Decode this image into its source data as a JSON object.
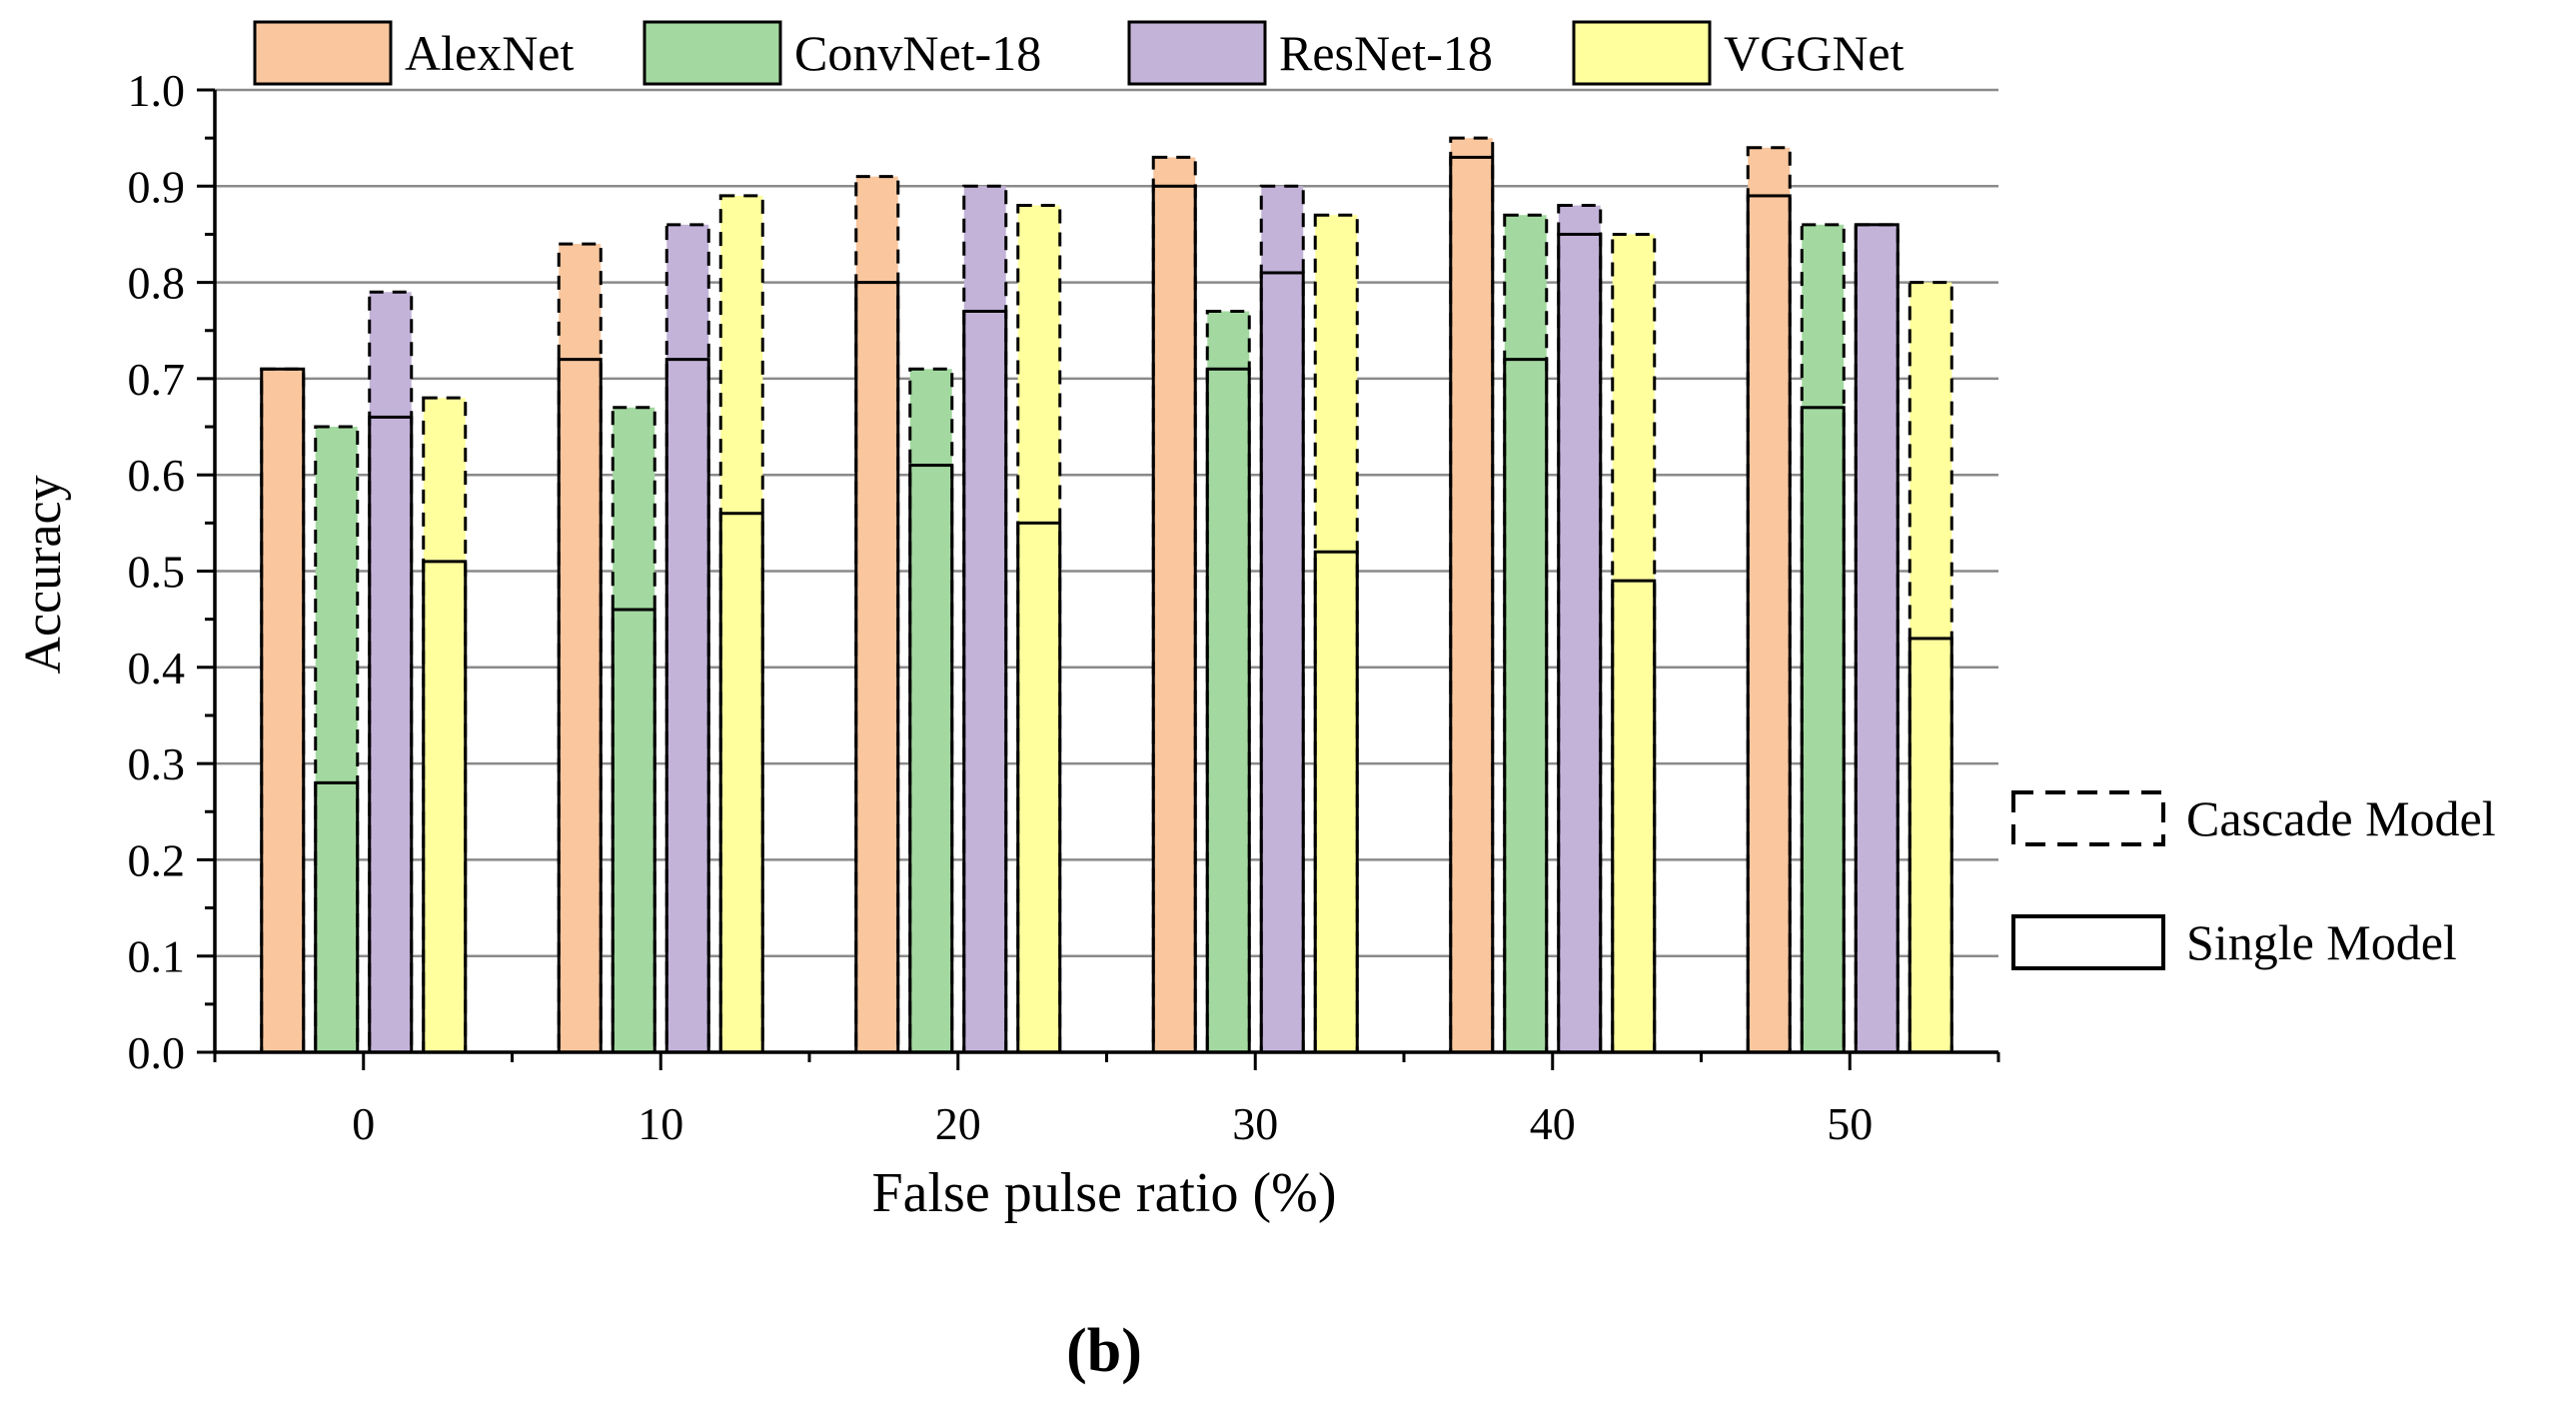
{
  "chart_data": {
    "type": "bar",
    "title": "",
    "xlabel": "False pulse ratio (%)",
    "ylabel": "Accuracy",
    "categories": [
      "0",
      "10",
      "20",
      "30",
      "40",
      "50"
    ],
    "ylim": [
      0,
      1.0
    ],
    "yticks": [
      "0.0",
      "0.1",
      "0.2",
      "0.3",
      "0.4",
      "0.5",
      "0.6",
      "0.7",
      "0.8",
      "0.9",
      "1.0"
    ],
    "grid": true,
    "legend_position": "top",
    "series": [
      {
        "name": "AlexNet",
        "color": "#f9c69e",
        "single_values": [
          0.71,
          0.72,
          0.8,
          0.9,
          0.93,
          0.89
        ],
        "cascade_values": [
          0.71,
          0.84,
          0.91,
          0.93,
          0.95,
          0.94
        ]
      },
      {
        "name": "ConvNet-18",
        "color": "#a3d9a0",
        "single_values": [
          0.28,
          0.46,
          0.61,
          0.71,
          0.72,
          0.67
        ],
        "cascade_values": [
          0.65,
          0.67,
          0.71,
          0.77,
          0.87,
          0.86
        ]
      },
      {
        "name": "ResNet-18",
        "color": "#c3b3d9",
        "single_values": [
          0.66,
          0.72,
          0.77,
          0.81,
          0.85,
          0.86
        ],
        "cascade_values": [
          0.79,
          0.86,
          0.9,
          0.9,
          0.88,
          0.86
        ]
      },
      {
        "name": "VGGNet",
        "color": "#ffff9e",
        "single_values": [
          0.51,
          0.56,
          0.55,
          0.52,
          0.49,
          0.43
        ],
        "cascade_values": [
          0.68,
          0.89,
          0.88,
          0.87,
          0.85,
          0.8
        ]
      }
    ],
    "style_legend": [
      {
        "label": "Cascade Model",
        "style": "dashed"
      },
      {
        "label": "Single Model",
        "style": "solid"
      }
    ],
    "panel_label": "(b)"
  }
}
